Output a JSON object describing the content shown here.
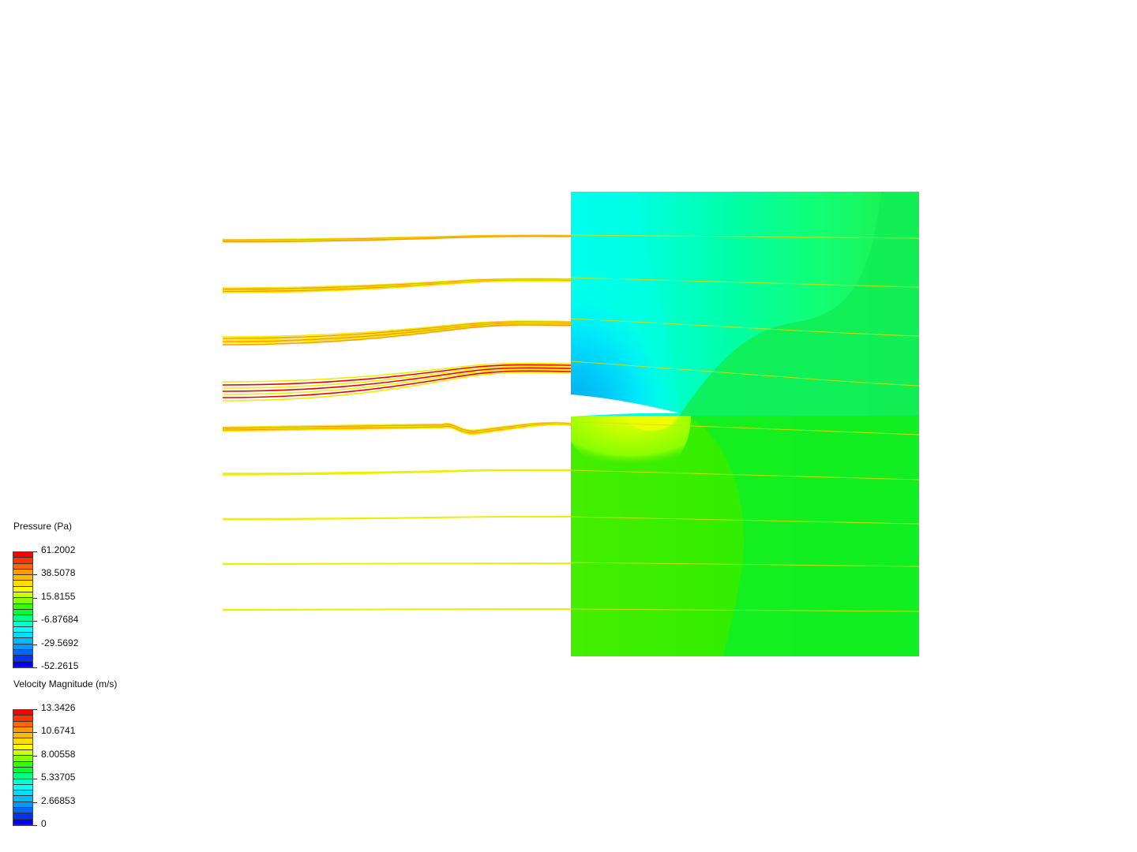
{
  "legends": {
    "pressure": {
      "title": "Pressure (Pa)",
      "labels": [
        "61.2002",
        "38.5078",
        "15.8155",
        "-6.87684",
        "-29.5692",
        "-52.2615"
      ]
    },
    "velocity": {
      "title": "Velocity Magnitude (m/s)",
      "labels": [
        "13.3426",
        "10.6741",
        "8.00558",
        "5.33705",
        "2.66853",
        "0"
      ]
    }
  },
  "colormap": [
    "#ff0000",
    "#ff3300",
    "#ff6600",
    "#ff9900",
    "#ffbb00",
    "#ffdd00",
    "#ffff00",
    "#ccff00",
    "#88ff00",
    "#33ff00",
    "#00ff33",
    "#00ff88",
    "#00ffcc",
    "#00ffff",
    "#00ddff",
    "#00bbff",
    "#0099ff",
    "#0066ff",
    "#0033ff",
    "#0000ff"
  ],
  "colors": {
    "domain_far": "#22ee22",
    "pressure_low": "#0077ee",
    "pressure_mid": "#00ffee",
    "pressure_high": "#ddff00",
    "streamline_fast": "#ee0000",
    "streamline_medium": "#ff9900",
    "streamline_slow": "#eeee00"
  },
  "scene": {
    "object": "cfd-pressure-contour-with-velocity-streamlines"
  }
}
